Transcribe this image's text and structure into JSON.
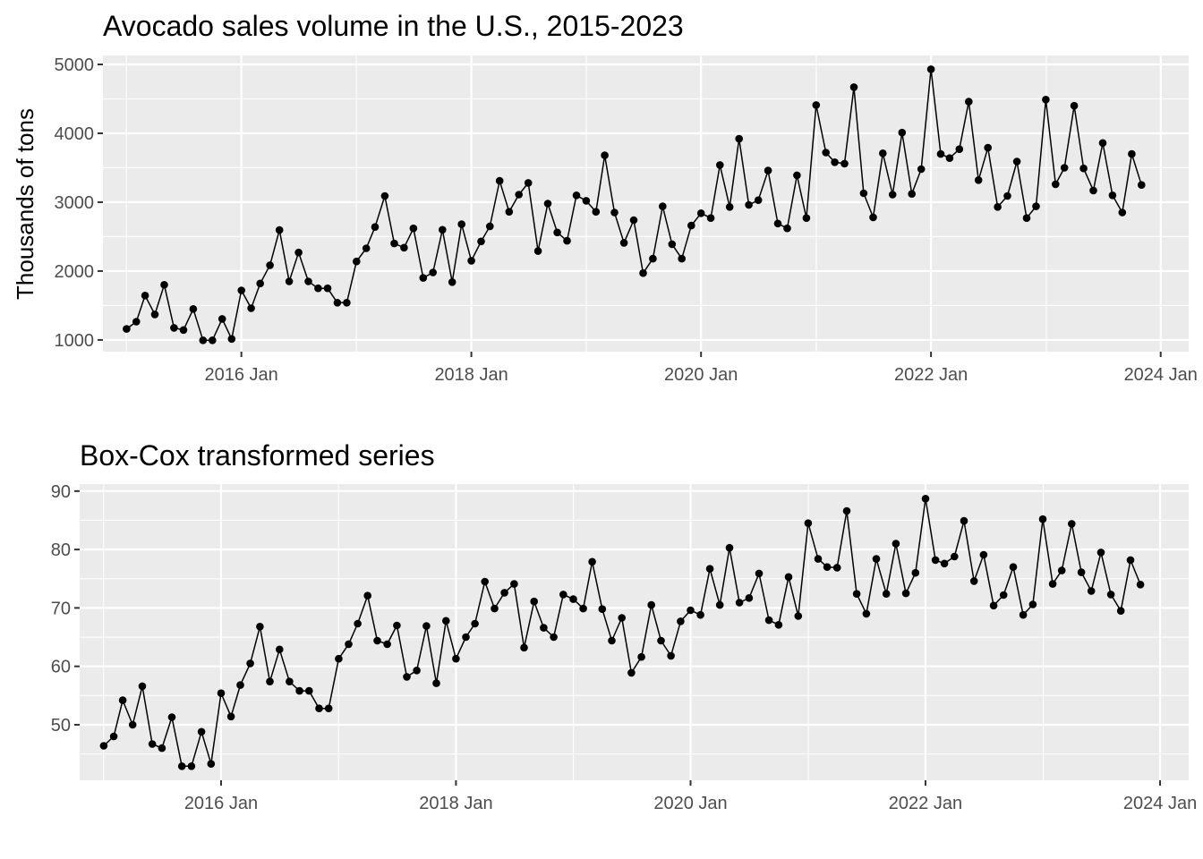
{
  "chart_data": [
    {
      "type": "line",
      "title": "Avocado sales volume in the U.S., 2015-2023",
      "xlabel": "",
      "ylabel": "Thousands of tons",
      "ylim": [
        830,
        5130
      ],
      "yticks": [
        1000,
        2000,
        3000,
        4000,
        5000
      ],
      "yticklabels": [
        "1000",
        "2000",
        "3000",
        "4000",
        "5000"
      ],
      "xlim": [
        "2014-10-18",
        "2024-03-30"
      ],
      "xticks": [
        "2016-01-01",
        "2018-01-01",
        "2020-01-01",
        "2022-01-01",
        "2024-01-01"
      ],
      "xticklabels": [
        "2016 Jan",
        "2018 Jan",
        "2020 Jan",
        "2022 Jan",
        "2024 Jan"
      ],
      "grid": true,
      "legend": "none",
      "line_color": "#000000",
      "panel_color": "#ebebeb",
      "x_start": "2015-01",
      "frequency": "monthly",
      "values": [
        1160,
        1265,
        1645,
        1370,
        1800,
        1175,
        1145,
        1450,
        995,
        995,
        1305,
        1015,
        1720,
        1460,
        1820,
        2085,
        2595,
        1850,
        2270,
        1850,
        1750,
        1750,
        1540,
        1540,
        2140,
        2330,
        2640,
        3090,
        2400,
        2340,
        2620,
        1900,
        1980,
        2600,
        1840,
        2680,
        2150,
        2430,
        2650,
        3310,
        2860,
        3110,
        3280,
        2290,
        2980,
        2560,
        2440,
        3100,
        3020,
        2860,
        3680,
        2850,
        2410,
        2740,
        1970,
        2180,
        2940,
        2390,
        2180,
        2660,
        2840,
        2770,
        3540,
        2930,
        3920,
        2960,
        3030,
        3460,
        2690,
        2620,
        3390,
        2770,
        4410,
        3720,
        3580,
        3560,
        4670,
        3130,
        2780,
        3710,
        3110,
        4010,
        3120,
        3480,
        4930,
        3700,
        3640,
        3770,
        4460,
        3320,
        3790,
        2930,
        3090,
        3590,
        2770,
        2940,
        4490,
        3260,
        3500,
        4400,
        3490,
        3170,
        3860,
        3100,
        2850,
        3700,
        3250
      ]
    },
    {
      "type": "line",
      "title": "Box-Cox transformed series",
      "xlabel": "",
      "ylabel": "",
      "ylim": [
        40.5,
        91.2
      ],
      "yticks": [
        50,
        60,
        70,
        80,
        90
      ],
      "yticklabels": [
        "50",
        "60",
        "70",
        "80",
        "90"
      ],
      "xlim": [
        "2014-10-18",
        "2024-03-30"
      ],
      "xticks": [
        "2016-01-01",
        "2018-01-01",
        "2020-01-01",
        "2022-01-01",
        "2024-01-01"
      ],
      "xticklabels": [
        "2016 Jan",
        "2018 Jan",
        "2020 Jan",
        "2022 Jan",
        "2024 Jan"
      ],
      "grid": true,
      "legend": "none",
      "line_color": "#000000",
      "panel_color": "#ebebeb",
      "x_start": "2015-01",
      "frequency": "monthly",
      "values": [
        46.4,
        48.0,
        54.2,
        50.0,
        56.6,
        46.7,
        46.0,
        51.3,
        42.9,
        42.9,
        48.8,
        43.3,
        55.4,
        51.4,
        56.8,
        60.5,
        66.8,
        57.4,
        62.9,
        57.4,
        55.8,
        55.8,
        52.8,
        52.8,
        61.3,
        63.8,
        67.3,
        72.1,
        64.4,
        63.8,
        67.0,
        58.2,
        59.3,
        66.9,
        57.1,
        67.8,
        61.3,
        65.0,
        67.3,
        74.5,
        69.9,
        72.6,
        74.1,
        63.2,
        71.1,
        66.6,
        65.0,
        72.3,
        71.5,
        69.9,
        77.9,
        69.8,
        64.4,
        68.3,
        58.9,
        61.6,
        70.5,
        64.4,
        61.8,
        67.7,
        69.6,
        68.8,
        76.7,
        70.5,
        80.3,
        70.9,
        71.7,
        75.9,
        67.9,
        67.1,
        75.3,
        68.6,
        84.5,
        78.4,
        77.0,
        76.9,
        86.6,
        72.4,
        69.0,
        78.4,
        72.4,
        81.0,
        72.5,
        76.0,
        88.7,
        78.2,
        77.6,
        78.8,
        84.9,
        74.6,
        79.1,
        70.4,
        72.2,
        77.0,
        68.8,
        70.6,
        85.2,
        74.1,
        76.4,
        84.4,
        76.1,
        72.9,
        79.5,
        72.3,
        69.5,
        78.2,
        74.0
      ]
    }
  ]
}
